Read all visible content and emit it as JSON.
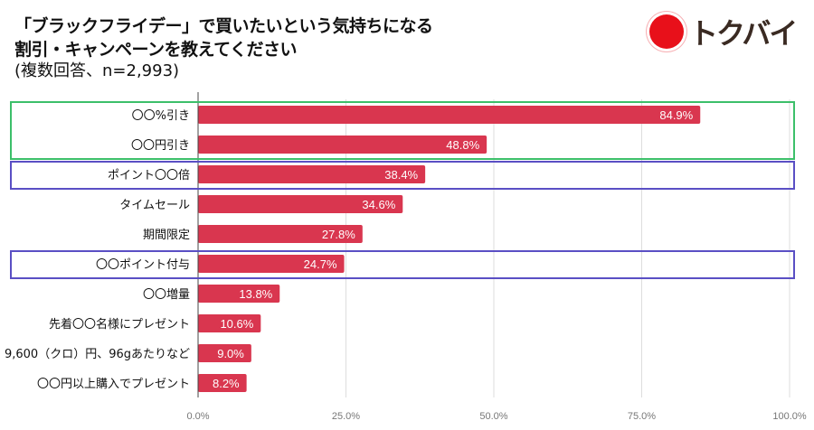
{
  "header": {
    "title_line1": "「ブラックフライデー」で買いたいという気持ちになる",
    "title_line2": "割引・キャンペーンを教えてください",
    "subtitle": "(複数回答、n=2,993)"
  },
  "logo": {
    "text": "トクバイ"
  },
  "chart_data": {
    "type": "bar",
    "orientation": "horizontal",
    "categories": [
      "〇〇%引き",
      "〇〇円引き",
      "ポイント〇〇倍",
      "タイムセール",
      "期間限定",
      "〇〇ポイント付与",
      "〇〇増量",
      "先着〇〇名様にプレゼント",
      "9,600（クロ）円、96gあたりなど",
      "〇〇円以上購入でプレゼント"
    ],
    "values": [
      84.9,
      48.8,
      38.4,
      34.6,
      27.8,
      24.7,
      13.8,
      10.6,
      9.0,
      8.2
    ],
    "data_labels": [
      "84.9%",
      "48.8%",
      "38.4%",
      "34.6%",
      "27.8%",
      "24.7%",
      "13.8%",
      "10.6%",
      "9.0%",
      "8.2%"
    ],
    "xlim": [
      0,
      100
    ],
    "x_ticks": [
      "0.0%",
      "25.0%",
      "50.0%",
      "75.0%",
      "100.0%"
    ],
    "grid": true,
    "bar_color": "#d9364f",
    "highlight_groups": [
      {
        "rows": [
          0,
          1
        ],
        "color": "#3cbf6a"
      },
      {
        "rows": [
          2
        ],
        "color": "#5a4fc4"
      },
      {
        "rows": [
          5
        ],
        "color": "#5a4fc4"
      }
    ]
  }
}
